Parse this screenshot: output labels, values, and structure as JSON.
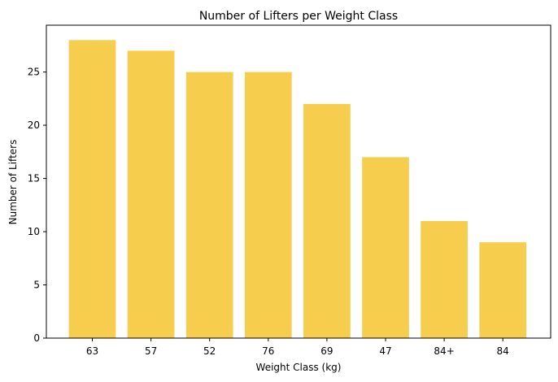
{
  "chart_data": {
    "type": "bar",
    "title": "Number of Lifters per Weight Class",
    "xlabel": "Weight Class (kg)",
    "ylabel": "Number of Lifters",
    "categories": [
      "63",
      "57",
      "52",
      "76",
      "69",
      "47",
      "84+",
      "84"
    ],
    "values": [
      28,
      27,
      25,
      25,
      22,
      17,
      11,
      9
    ],
    "ylim": [
      0,
      29.4
    ],
    "yticks": [
      0,
      5,
      10,
      15,
      20,
      25
    ],
    "bar_color": "#f6cd4c",
    "grid": false,
    "legend": "none"
  }
}
